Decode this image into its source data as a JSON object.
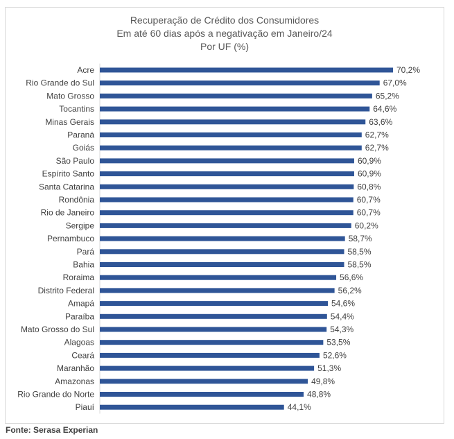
{
  "chart_data": {
    "type": "bar",
    "orientation": "horizontal",
    "title": "Recuperação de Crédito dos Consumidores",
    "subtitle": "Em até 60 dias após a negativação em Janeiro/24",
    "subtitle2": "Por UF (%)",
    "categories": [
      "Acre",
      "Rio Grande do Sul",
      "Mato Grosso",
      "Tocantins",
      "Minas Gerais",
      "Paraná",
      "Goiás",
      "São Paulo",
      "Espírito Santo",
      "Santa Catarina",
      "Rondônia",
      "Rio de Janeiro",
      "Sergipe",
      "Pernambuco",
      "Pará",
      "Bahia",
      "Roraima",
      "Distrito Federal",
      "Amapá",
      "Paraíba",
      "Mato Grosso do Sul",
      "Alagoas",
      "Ceará",
      "Maranhão",
      "Amazonas",
      "Rio Grande do Norte",
      "Piauí"
    ],
    "values": [
      70.2,
      67.0,
      65.2,
      64.6,
      63.6,
      62.7,
      62.7,
      60.9,
      60.9,
      60.8,
      60.7,
      60.7,
      60.2,
      58.7,
      58.5,
      58.5,
      56.6,
      56.2,
      54.6,
      54.4,
      54.3,
      53.5,
      52.6,
      51.3,
      49.8,
      48.8,
      44.1
    ],
    "value_labels": [
      "70,2%",
      "67,0%",
      "65,2%",
      "64,6%",
      "63,6%",
      "62,7%",
      "62,7%",
      "60,9%",
      "60,9%",
      "60,8%",
      "60,7%",
      "60,7%",
      "60,2%",
      "58,7%",
      "58,5%",
      "58,5%",
      "56,6%",
      "56,2%",
      "54,6%",
      "54,4%",
      "54,3%",
      "53,5%",
      "52,6%",
      "51,3%",
      "49,8%",
      "48,8%",
      "44,1%"
    ],
    "xlim": [
      0,
      70.2
    ],
    "xlabel": "",
    "ylabel": "",
    "grid": false,
    "legend": "none",
    "bar_color": "#2f5597"
  },
  "source": "Fonte: Serasa Experian"
}
